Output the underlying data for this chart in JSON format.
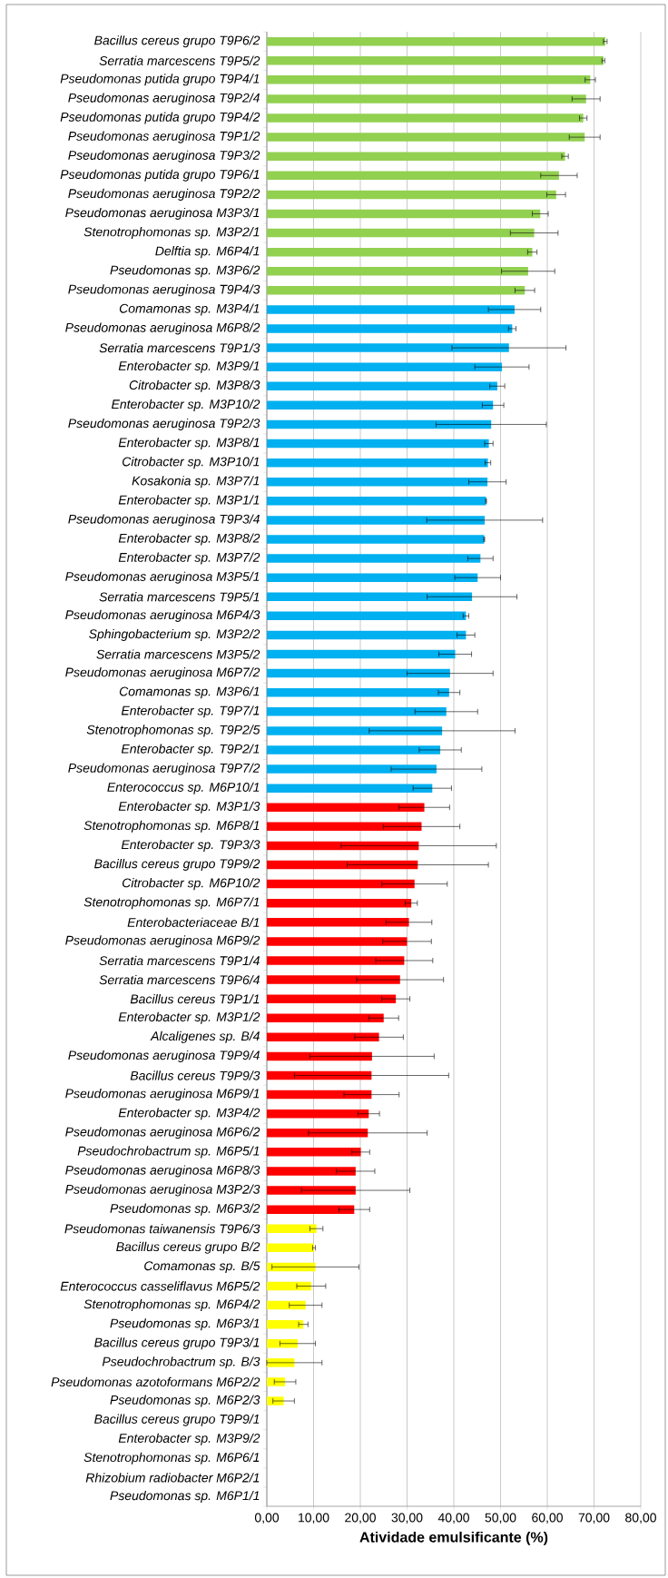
{
  "chart_data": {
    "type": "bar",
    "orientation": "horizontal",
    "xlabel": "Atividade emulsificante (%)",
    "categories": [
      "Bacillus cereus grupo T9P6/2",
      "Serratia marcescens T9P5/2",
      "Pseudomonas putida grupo T9P4/1",
      "Pseudomonas aeruginosa T9P2/4",
      "Pseudomonas putida grupo T9P4/2",
      "Pseudomonas aeruginosa T9P1/2",
      "Pseudomonas aeruginosa T9P3/2",
      "Pseudomonas putida grupo T9P6/1",
      "Pseudomonas aeruginosa T9P2/2",
      "Pseudomonas aeruginosa M3P3/1",
      "Stenotrophomonas sp. M3P2/1",
      "Delftia sp. M6P4/1",
      "Pseudomonas sp. M3P6/2",
      "Pseudomonas aeruginosa T9P4/3",
      "Comamonas sp. M3P4/1",
      "Pseudomonas aeruginosa M6P8/2",
      "Serratia marcescens T9P1/3",
      "Enterobacter sp. M3P9/1",
      "Citrobacter sp. M3P8/3",
      "Enterobacter sp. M3P10/2",
      "Pseudomonas aeruginosa T9P2/3",
      "Enterobacter sp. M3P8/1",
      "Citrobacter sp. M3P10/1",
      "Kosakonia sp. M3P7/1",
      "Enterobacter sp. M3P1/1",
      "Pseudomonas aeruginosa T9P3/4",
      "Enterobacter sp. M3P8/2",
      "Enterobacter sp. M3P7/2",
      "Pseudomonas aeruginosa M3P5/1",
      "Serratia marcescens T9P5/1",
      "Pseudomonas aeruginosa M6P4/3",
      "Sphingobacterium sp. M3P2/2",
      "Serratia marcescens M3P5/2",
      "Pseudomonas aeruginosa M6P7/2",
      "Comamonas sp. M3P6/1",
      "Enterobacter sp. T9P7/1",
      "Stenotrophomonas sp. T9P2/5",
      "Enterobacter sp. T9P2/1",
      "Pseudomonas aeruginosa T9P7/2",
      "Enterococcus sp. M6P10/1",
      "Enterobacter sp. M3P1/3",
      "Stenotrophomonas sp. M6P8/1",
      "Enterobacter sp. T9P3/3",
      "Bacillus cereus grupo T9P9/2",
      "Citrobacter sp. M6P10/2",
      "Stenotrophomonas sp. M6P7/1",
      "Enterobacteriaceae B/1",
      "Pseudomonas aeruginosa M6P9/2",
      "Serratia marcescens T9P1/4",
      "Serratia marcescens T9P6/4",
      "Bacillus cereus T9P1/1",
      "Enterobacter sp. M3P1/2",
      "Alcaligenes sp. B/4",
      "Pseudomonas aeruginosa T9P9/4",
      "Bacillus cereus T9P9/3",
      "Pseudomonas aeruginosa M6P9/1",
      "Enterobacter sp. M3P4/2",
      "Pseudomonas aeruginosa M6P6/2",
      "Pseudochrobactrum sp. M6P5/1",
      "Pseudomonas aeruginosa M6P8/3",
      "Pseudomonas aeruginosa M3P2/3",
      "Pseudomonas sp. M6P3/2",
      "Pseudomonas taiwanensis T9P6/3",
      "Bacillus cereus grupo B/2",
      "Comamonas sp. B/5",
      "Enterococcus casseliflavus M6P5/2",
      "Stenotrophomonas sp. M6P4/2",
      "Pseudomonas sp. M6P3/1",
      "Bacillus cereus grupo T9P3/1",
      "Pseudochrobactrum sp. B/3",
      "Pseudomonas azotoformans M6P2/2",
      "Pseudomonas sp. M6P2/3",
      "Bacillus cereus grupo T9P9/1",
      "Enterobacter sp. M3P9/2",
      "Stenotrophomonas sp. M6P6/1",
      "Rhizobium radiobacter M6P2/1",
      "Pseudomonas sp. M6P1/1"
    ],
    "values": [
      72.4,
      72.0,
      69.2,
      68.3,
      67.7,
      68.0,
      63.8,
      62.5,
      61.9,
      58.5,
      57.2,
      56.8,
      55.9,
      55.2,
      53.0,
      52.5,
      51.8,
      50.3,
      49.3,
      48.4,
      48.0,
      47.5,
      47.3,
      47.2,
      46.9,
      46.6,
      46.5,
      45.7,
      45.1,
      43.9,
      42.6,
      42.6,
      40.3,
      39.2,
      39.0,
      38.4,
      37.5,
      37.1,
      36.3,
      35.4,
      33.7,
      33.1,
      32.5,
      32.3,
      31.6,
      30.9,
      30.4,
      30.0,
      29.4,
      28.5,
      27.6,
      25.0,
      24.0,
      22.5,
      22.4,
      22.4,
      21.8,
      21.6,
      20.1,
      19.0,
      19.0,
      18.7,
      10.6,
      10.1,
      10.4,
      9.5,
      8.3,
      7.8,
      6.6,
      5.9,
      3.9,
      3.6,
      0,
      0,
      0,
      0,
      0
    ],
    "errors": [
      0.4,
      0.3,
      1.1,
      3.0,
      0.8,
      3.3,
      0.7,
      3.9,
      2.0,
      1.7,
      5.1,
      1.0,
      5.7,
      2.1,
      5.6,
      0.8,
      12.2,
      5.8,
      1.6,
      2.3,
      11.8,
      0.9,
      0.6,
      4.0,
      0.1,
      12.4,
      0.1,
      2.7,
      4.9,
      9.6,
      0.6,
      1.9,
      3.5,
      9.2,
      2.3,
      6.7,
      15.6,
      4.5,
      9.7,
      4.1,
      5.4,
      8.2,
      16.6,
      15.1,
      7.0,
      1.3,
      4.9,
      5.2,
      6.1,
      9.3,
      3.0,
      3.2,
      5.2,
      13.3,
      16.5,
      5.9,
      2.3,
      12.7,
      1.9,
      4.1,
      11.6,
      3.3,
      1.4,
      0.3,
      9.3,
      3.1,
      3.5,
      1.0,
      3.8,
      5.9,
      2.3,
      2.3,
      null,
      null,
      null,
      null,
      null
    ],
    "colors": [
      "#92d050",
      "#92d050",
      "#92d050",
      "#92d050",
      "#92d050",
      "#92d050",
      "#92d050",
      "#92d050",
      "#92d050",
      "#92d050",
      "#92d050",
      "#92d050",
      "#92d050",
      "#92d050",
      "#00b0f0",
      "#00b0f0",
      "#00b0f0",
      "#00b0f0",
      "#00b0f0",
      "#00b0f0",
      "#00b0f0",
      "#00b0f0",
      "#00b0f0",
      "#00b0f0",
      "#00b0f0",
      "#00b0f0",
      "#00b0f0",
      "#00b0f0",
      "#00b0f0",
      "#00b0f0",
      "#00b0f0",
      "#00b0f0",
      "#00b0f0",
      "#00b0f0",
      "#00b0f0",
      "#00b0f0",
      "#00b0f0",
      "#00b0f0",
      "#00b0f0",
      "#00b0f0",
      "#ff0000",
      "#ff0000",
      "#ff0000",
      "#ff0000",
      "#ff0000",
      "#ff0000",
      "#ff0000",
      "#ff0000",
      "#ff0000",
      "#ff0000",
      "#ff0000",
      "#ff0000",
      "#ff0000",
      "#ff0000",
      "#ff0000",
      "#ff0000",
      "#ff0000",
      "#ff0000",
      "#ff0000",
      "#ff0000",
      "#ff0000",
      "#ff0000",
      "#ffff00",
      "#ffff00",
      "#ffff00",
      "#ffff00",
      "#ffff00",
      "#ffff00",
      "#ffff00",
      "#ffff00",
      "#ffff00",
      "#ffff00",
      "#ffff00",
      "#ffff00",
      "#ffff00",
      "#ffff00",
      "#ffff00"
    ],
    "xlim": [
      0,
      80
    ],
    "xticks": [
      {
        "value": 0,
        "label": "0,00"
      },
      {
        "value": 10,
        "label": "10,00"
      },
      {
        "value": 20,
        "label": "20,00"
      },
      {
        "value": 30,
        "label": "30,00"
      },
      {
        "value": 40,
        "label": "40,00"
      },
      {
        "value": 50,
        "label": "50,00"
      },
      {
        "value": 60,
        "label": "60,00"
      },
      {
        "value": 70,
        "label": "70,00"
      },
      {
        "value": 80,
        "label": "80,00"
      }
    ],
    "grid": "x"
  }
}
